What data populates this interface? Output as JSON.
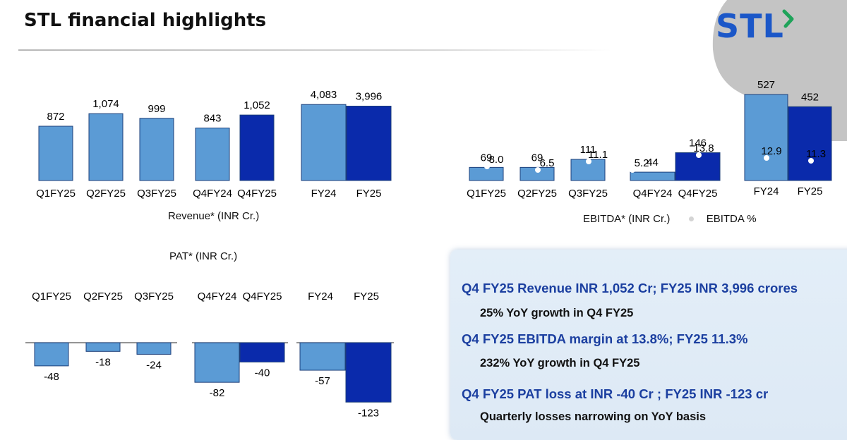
{
  "header": {
    "title": "STL financial highlights",
    "logo_text": "STL"
  },
  "colors": {
    "light_bar": "#5b9bd5",
    "dark_bar": "#0a2aab",
    "margin_dot": "#ffffff",
    "logo_blue": "#1b57c8",
    "logo_green": "#1fa35a",
    "callout_heading": "#1b3fa0"
  },
  "chart_data": [
    {
      "id": "revenue",
      "type": "bar",
      "caption": "Revenue* (INR Cr.)",
      "categories": [
        "Q1FY25",
        "Q2FY25",
        "Q3FY25",
        "Q4FY24",
        "Q4FY25",
        "FY24",
        "FY25"
      ],
      "values": [
        872,
        1074,
        999,
        843,
        1052,
        4083,
        3996
      ],
      "value_labels": [
        "872",
        "1,074",
        "999",
        "843",
        "1,052",
        "4,083",
        "3,996"
      ],
      "bar_colors": [
        "light",
        "light",
        "light",
        "light",
        "dark",
        "light",
        "dark"
      ],
      "note": "Quarterly bars and annual bars drawn on separate scales"
    },
    {
      "id": "ebitda",
      "type": "bar",
      "categories": [
        "Q1FY25",
        "Q2FY25",
        "Q3FY25",
        "Q4FY24",
        "Q4FY25",
        "FY24",
        "FY25"
      ],
      "series": [
        {
          "name": "EBITDA* (INR Cr.)",
          "values": [
            69,
            69,
            111,
            44,
            146,
            527,
            452
          ],
          "value_labels": [
            "69",
            "69",
            "111",
            "44",
            "146",
            "527",
            "452"
          ]
        },
        {
          "name": "EBITDA %",
          "values": [
            8.0,
            6.5,
            11.1,
            5.2,
            13.8,
            12.9,
            11.3
          ],
          "value_labels": [
            "8.0",
            "6.5",
            "11.1",
            "5.2",
            "13.8",
            "12.9",
            "11.3"
          ]
        }
      ],
      "bar_colors": [
        "light",
        "light",
        "light",
        "light",
        "dark",
        "light",
        "dark"
      ],
      "legend": [
        "EBITDA* (INR Cr.)",
        "EBITDA %"
      ],
      "legend_position": "bottom"
    },
    {
      "id": "pat",
      "type": "bar",
      "title": "PAT* (INR Cr.)",
      "categories": [
        "Q1FY25",
        "Q2FY25",
        "Q3FY25",
        "Q4FY24",
        "Q4FY25",
        "FY24",
        "FY25"
      ],
      "values": [
        -48,
        -18,
        -24,
        -82,
        -40,
        -57,
        -123
      ],
      "value_labels": [
        "-48",
        "-18",
        "-24",
        "-82",
        "-40",
        "-57",
        "-123"
      ],
      "bar_colors": [
        "light",
        "light",
        "light",
        "light",
        "dark",
        "light",
        "dark"
      ]
    }
  ],
  "highlights": [
    {
      "heading": "Q4 FY25 Revenue INR 1,052 Cr; FY25 INR 3,996 crores",
      "detail": "25% YoY growth in Q4 FY25"
    },
    {
      "heading": "Q4 FY25 EBITDA margin at 13.8%;  FY25 11.3%",
      "detail": "232% YoY growth in Q4 FY25"
    },
    {
      "heading": "Q4 FY25 PAT loss at INR -40 Cr ; FY25 INR -123 cr",
      "detail": "Quarterly losses narrowing on YoY basis"
    }
  ]
}
